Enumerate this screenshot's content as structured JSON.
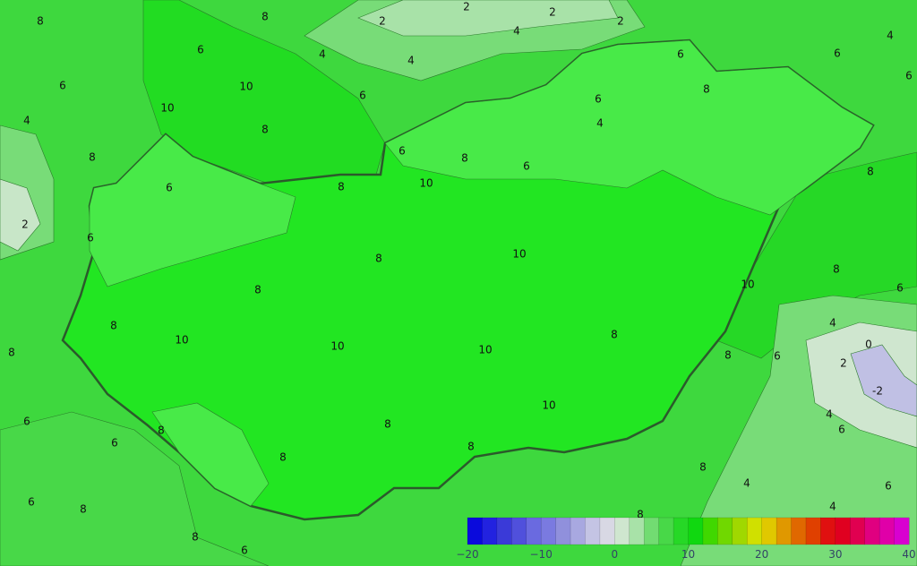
{
  "map": {
    "country_fill": "#22e622",
    "surround_fill": "#3ed83e",
    "contour_labels": [
      "8",
      "8",
      "2",
      "2",
      "2",
      "2",
      "4",
      "4",
      "4",
      "6",
      "6",
      "10",
      "10",
      "6",
      "8",
      "4",
      "8",
      "2",
      "6",
      "6",
      "6",
      "6",
      "4",
      "6",
      "8",
      "6",
      "4",
      "6",
      "8",
      "6",
      "10",
      "8",
      "8",
      "10",
      "8",
      "8",
      "8",
      "6",
      "10",
      "8",
      "10",
      "10",
      "10",
      "8",
      "4",
      "0",
      "8",
      "8",
      "6",
      "2",
      "-2",
      "10",
      "4",
      "6",
      "6",
      "8",
      "6",
      "8",
      "8",
      "8",
      "8",
      "4",
      "6",
      "6",
      "8",
      "4",
      "8",
      "8",
      "6"
    ]
  },
  "colorbar": {
    "min": -20,
    "max": 40,
    "step": 2,
    "tick_labels": [
      "−20",
      "−10",
      "0",
      "10",
      "20",
      "30",
      "40"
    ],
    "colors": [
      "#0a0adc",
      "#2222e0",
      "#3a3ad8",
      "#5050dc",
      "#6a6ae0",
      "#7a7ae0",
      "#9090dc",
      "#a8a8e0",
      "#c4c4e4",
      "#d8d8e4",
      "#cfe6cf",
      "#a8e2a8",
      "#72dc72",
      "#48d848",
      "#26d826",
      "#10d810",
      "#40d800",
      "#70d800",
      "#a0d800",
      "#d0e000",
      "#e0c800",
      "#e09800",
      "#e06800",
      "#e04000",
      "#e01010",
      "#e00020",
      "#e00050",
      "#e00080",
      "#e000a8",
      "#d800d0"
    ]
  }
}
